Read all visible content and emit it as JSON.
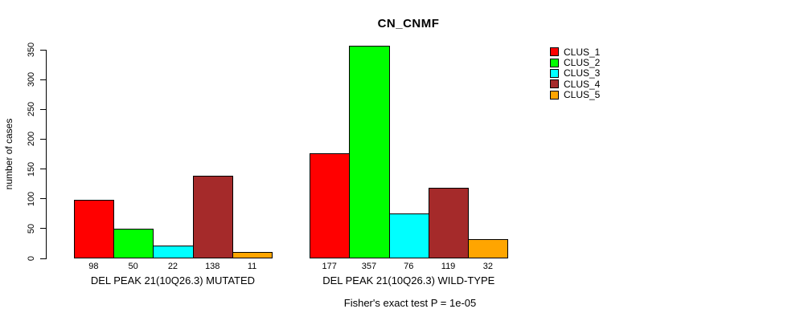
{
  "chart_data": {
    "type": "bar",
    "title": "CN_CNMF",
    "ylabel": "number of cases",
    "xlabel": "",
    "ylim": [
      0,
      350
    ],
    "yticks": [
      0,
      50,
      100,
      150,
      200,
      250,
      300,
      350
    ],
    "grid": false,
    "legend_position": "right-outside",
    "bar_value_labels": true,
    "categories": [
      "DEL PEAK 21(10Q26.3) MUTATED",
      "DEL PEAK 21(10Q26.3) WILD-TYPE"
    ],
    "series": [
      {
        "name": "CLUS_1",
        "color": "#FF0000",
        "values": [
          98,
          177
        ]
      },
      {
        "name": "CLUS_2",
        "color": "#00FF00",
        "values": [
          50,
          357
        ]
      },
      {
        "name": "CLUS_3",
        "color": "#00FFFF",
        "values": [
          22,
          76
        ]
      },
      {
        "name": "CLUS_4",
        "color": "#A52A2A",
        "values": [
          138,
          119
        ]
      },
      {
        "name": "CLUS_5",
        "color": "#FFA500",
        "values": [
          11,
          32
        ]
      }
    ],
    "annotation": "Fisher's exact test P = 1e-05"
  }
}
